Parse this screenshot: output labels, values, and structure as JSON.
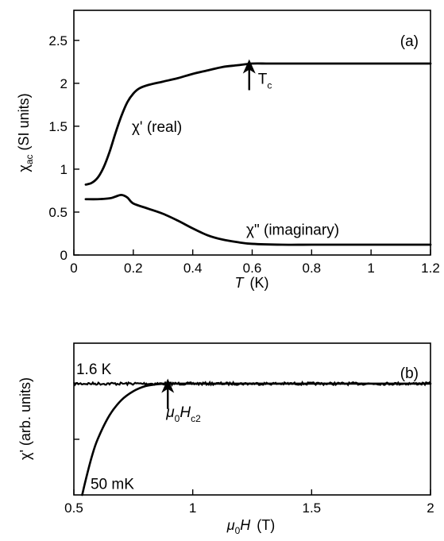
{
  "chart_data": [
    {
      "panel": "(a)",
      "type": "line",
      "xlabel": "T",
      "xlabel_unit": "(K)",
      "ylabel_main": "χ",
      "ylabel_sub": "ac",
      "ylabel_unit": "(SI units)",
      "xlim": [
        0,
        1.2
      ],
      "ylim": [
        0,
        2.85
      ],
      "xticks": [
        0,
        0.2,
        0.4,
        0.6,
        0.8,
        1,
        1.2
      ],
      "xtick_labels": [
        "0",
        "0.2",
        "0.4",
        "0.6",
        "0.8",
        "1",
        "1.2"
      ],
      "yticks": [
        0,
        0.5,
        1,
        1.5,
        2,
        2.5
      ],
      "ytick_labels": [
        "0",
        "0.5",
        "1",
        "1.5",
        "2",
        "2.5"
      ],
      "grid": false,
      "series": [
        {
          "name": "χ' (real)",
          "x": [
            0.04,
            0.06,
            0.08,
            0.1,
            0.12,
            0.14,
            0.16,
            0.18,
            0.2,
            0.22,
            0.25,
            0.3,
            0.35,
            0.4,
            0.45,
            0.5,
            0.55,
            0.6,
            0.65,
            0.7,
            0.8,
            0.9,
            1.0,
            1.1,
            1.2
          ],
          "y": [
            0.82,
            0.84,
            0.9,
            1.02,
            1.2,
            1.42,
            1.62,
            1.78,
            1.88,
            1.94,
            1.98,
            2.02,
            2.06,
            2.11,
            2.15,
            2.19,
            2.21,
            2.23,
            2.23,
            2.23,
            2.23,
            2.23,
            2.23,
            2.23,
            2.23
          ]
        },
        {
          "name": "χ\" (imaginary)",
          "x": [
            0.04,
            0.08,
            0.12,
            0.14,
            0.16,
            0.18,
            0.2,
            0.25,
            0.3,
            0.35,
            0.4,
            0.45,
            0.5,
            0.55,
            0.6,
            0.7,
            0.8,
            1.0,
            1.2
          ],
          "y": [
            0.65,
            0.65,
            0.66,
            0.68,
            0.7,
            0.67,
            0.6,
            0.54,
            0.48,
            0.4,
            0.31,
            0.23,
            0.18,
            0.15,
            0.13,
            0.12,
            0.12,
            0.12,
            0.12
          ]
        }
      ],
      "annotations": [
        {
          "kind": "series-label",
          "text": "χ' (real)",
          "at_x": 0.195,
          "at_y": 1.5
        },
        {
          "kind": "series-label",
          "text": "χ\" (imaginary)",
          "at_x": 0.58,
          "at_y": 0.3
        },
        {
          "kind": "arrow",
          "label_main": "T",
          "label_sub": "c",
          "x": 0.59,
          "y_from": 1.92,
          "y_to": 2.28
        }
      ]
    },
    {
      "panel": "(b)",
      "type": "line",
      "xlabel_mu": "μ",
      "xlabel_mu_sub": "0",
      "xlabel_var": "H",
      "xlabel_unit": "(T)",
      "ylabel": "χ' (arb. units)",
      "xlim": [
        0.5,
        2
      ],
      "ylim": [
        0,
        1.2
      ],
      "xticks": [
        0.5,
        1,
        1.5,
        2
      ],
      "xtick_labels": [
        "0.5",
        "1",
        "1.5",
        "2"
      ],
      "grid": false,
      "series": [
        {
          "name": "1.6 K",
          "x": [
            0.5,
            0.6,
            0.7,
            0.8,
            0.9,
            1.0,
            1.2,
            1.4,
            1.6,
            1.8,
            2.0
          ],
          "y": [
            0.88,
            0.88,
            0.88,
            0.88,
            0.88,
            0.88,
            0.88,
            0.88,
            0.88,
            0.88,
            0.88
          ]
        },
        {
          "name": "50 mK",
          "x": [
            0.535,
            0.55,
            0.575,
            0.6,
            0.65,
            0.7,
            0.75,
            0.8,
            0.85,
            0.88,
            0.9,
            1.0,
            1.2,
            1.5,
            2.0
          ],
          "y": [
            0.0,
            0.12,
            0.3,
            0.44,
            0.63,
            0.75,
            0.82,
            0.86,
            0.875,
            0.88,
            0.88,
            0.88,
            0.88,
            0.88,
            0.88
          ]
        }
      ],
      "annotations": [
        {
          "kind": "arrow",
          "label_mu": "μ",
          "label_mu_sub": "0",
          "label_var": "H",
          "label_var_sub": "c2",
          "x": 0.895,
          "y_from": 0.68,
          "y_to": 0.92
        }
      ]
    }
  ]
}
